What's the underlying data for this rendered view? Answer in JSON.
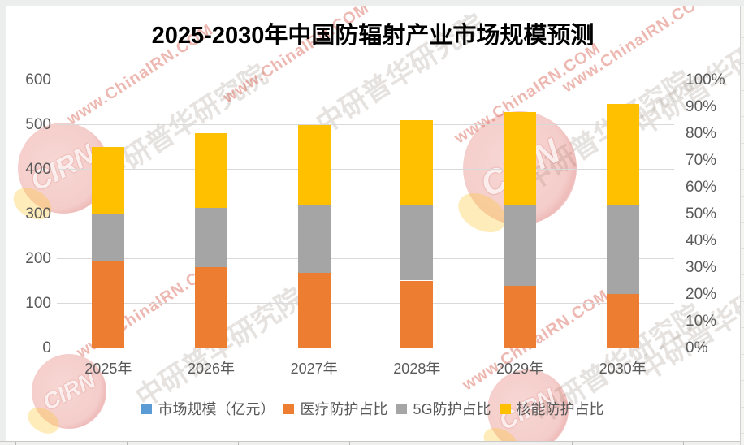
{
  "title": "2025-2030年中国防辐射产业市场规模预测",
  "chart_data": {
    "type": "bar",
    "stacked": true,
    "title": "2025-2030年中国防辐射产业市场规模预测",
    "categories": [
      "2025年",
      "2026年",
      "2027年",
      "2028年",
      "2029年",
      "2030年"
    ],
    "series": [
      {
        "key": "medical-protection-share",
        "name": "医疗防护占比",
        "color": "#ED7D31",
        "unit": "%",
        "values": [
          32,
          30,
          28,
          25,
          23,
          20
        ]
      },
      {
        "key": "5g-protection-share",
        "name": "5G防护占比",
        "color": "#A5A5A5",
        "unit": "%",
        "values": [
          18,
          22,
          25,
          28,
          30,
          33
        ]
      },
      {
        "key": "nuclear-protection-share",
        "name": "核能防护占比",
        "color": "#FFC000",
        "unit": "%",
        "values": [
          25,
          28,
          30,
          32,
          35,
          38
        ]
      }
    ],
    "cumulative_tops_pct": [
      75,
      80,
      83,
      85,
      88,
      91
    ],
    "left_axis": {
      "min": 0,
      "max": 600,
      "step": 100,
      "labels": [
        "600",
        "500",
        "400",
        "300",
        "200",
        "100",
        "0"
      ]
    },
    "right_axis": {
      "min": 0,
      "max": 100,
      "step": 10,
      "labels": [
        "100%",
        "90%",
        "80%",
        "70%",
        "60%",
        "50%",
        "40%",
        "30%",
        "20%",
        "10%",
        "0%"
      ]
    },
    "legend_position": "bottom",
    "grid": true,
    "legend_items": [
      {
        "label": "市场规模（亿元）",
        "color": "#5B9BD5"
      },
      {
        "label": "医疗防护占比",
        "color": "#ED7D31"
      },
      {
        "label": "5G防护占比",
        "color": "#A5A5A5"
      },
      {
        "label": "核能防护占比",
        "color": "#FFC000"
      }
    ]
  },
  "watermark": {
    "url_text": "www.ChinaIRN.COM",
    "brand_text": "中研普华研究院",
    "logo_text": "CIRN",
    "red_color": "#D55546",
    "gray_color": "#A89E96"
  },
  "colors": {
    "grid": "#D9D9D9",
    "axis_text": "#595959",
    "title_text": "#000000",
    "background": "#FFFFFF"
  }
}
